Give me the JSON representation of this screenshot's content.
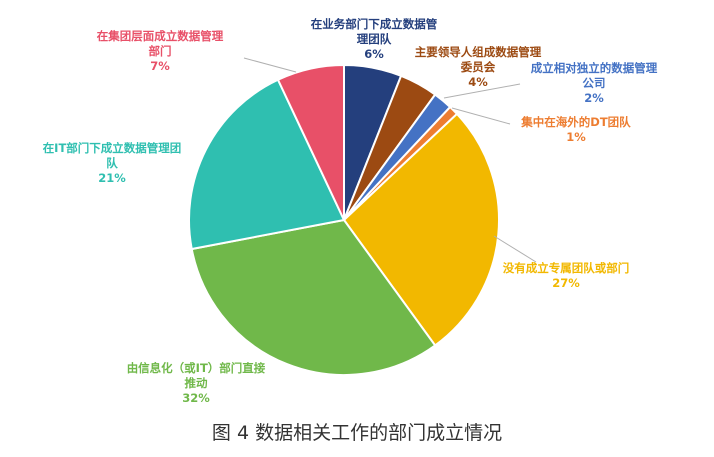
{
  "chart_data": {
    "type": "pie",
    "title": "",
    "slices": [
      {
        "label": "在业务部门下成立数据管理团队",
        "value": 6,
        "value_label": "6%",
        "color": "#243f7d"
      },
      {
        "label": "主要领导人组成数据管理委员会",
        "value": 4,
        "value_label": "4%",
        "color": "#9c4a12"
      },
      {
        "label": "成立相对独立的数据管理公司",
        "value": 2,
        "value_label": "2%",
        "color": "#4472c4"
      },
      {
        "label": "集中在海外的DT团队",
        "value": 1,
        "value_label": "1%",
        "color": "#ed7d31"
      },
      {
        "label": "没有成立专属团队或部门",
        "value": 27,
        "value_label": "27%",
        "color": "#f2b800"
      },
      {
        "label": "由信息化（或IT）部门直接推动",
        "value": 32,
        "value_label": "32%",
        "color": "#70b84a"
      },
      {
        "label": "在IT部门下成立数据管理团队",
        "value": 21,
        "value_label": "21%",
        "color": "#2fbfb0"
      },
      {
        "label": "在集团层面成立数据管理部门",
        "value": 7,
        "value_label": "7%",
        "color": "#e85068"
      }
    ]
  },
  "caption": "图 4  数据相关工作的部门成立情况"
}
